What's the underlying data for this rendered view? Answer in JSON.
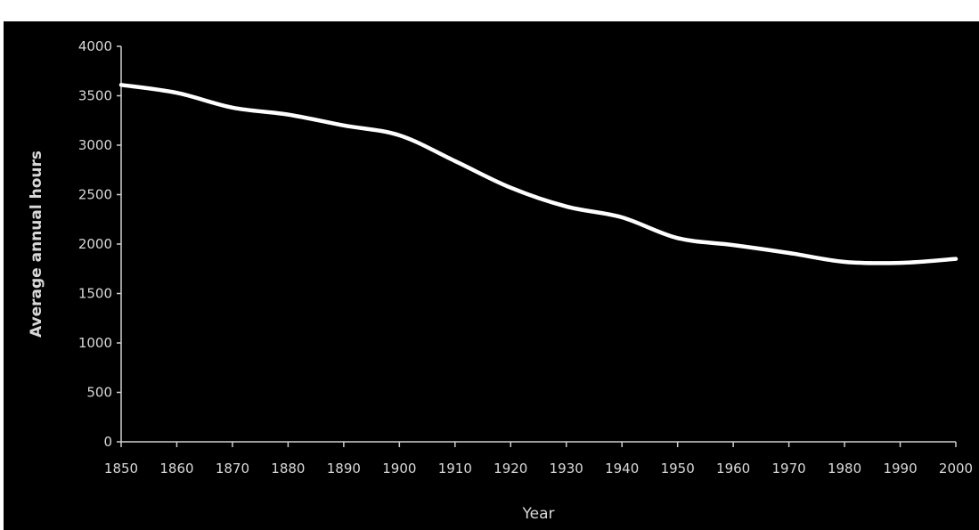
{
  "chart_data": {
    "type": "line",
    "title": "",
    "xlabel": "Year",
    "ylabel": "Average annual hours",
    "xlim": [
      1850,
      2000
    ],
    "ylim": [
      0,
      4000
    ],
    "x_ticks": [
      "1850",
      "1860",
      "1870",
      "1880",
      "1890",
      "1900",
      "1910",
      "1920",
      "1930",
      "1940",
      "1950",
      "1960",
      "1970",
      "1980",
      "1990",
      "2000"
    ],
    "y_ticks": [
      "0",
      "500",
      "1000",
      "1500",
      "2000",
      "2500",
      "3000",
      "3500",
      "4000"
    ],
    "x": [
      1850,
      1860,
      1870,
      1880,
      1890,
      1900,
      1910,
      1920,
      1930,
      1940,
      1950,
      1960,
      1970,
      1980,
      1990,
      2000
    ],
    "series": [
      {
        "values": [
          3610,
          3530,
          3380,
          3310,
          3200,
          3100,
          2840,
          2570,
          2380,
          2270,
          2060,
          1990,
          1910,
          1820,
          1810,
          1850
        ]
      }
    ],
    "grid": false,
    "colors": {
      "background": "#000000",
      "line": "#ffffff",
      "text": "#d8d8d8",
      "axis": "#cfcfcf"
    }
  }
}
